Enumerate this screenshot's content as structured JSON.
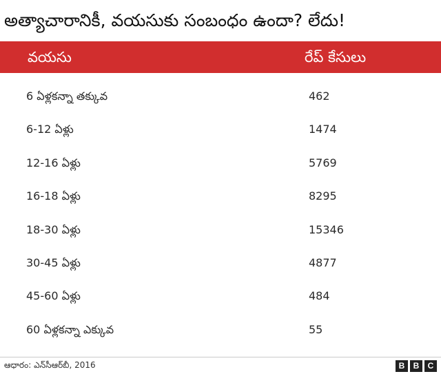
{
  "title": "అత్యాచారానికీ, వయసుకు సంబంధం ఉందా? లేదు!",
  "header_color": "#d12e2e",
  "chart_data": {
    "type": "table",
    "columns": [
      "వయసు",
      "రేప్ కేసులు"
    ],
    "rows": [
      {
        "age": "6 ఏళ్లకన్నా తక్కువ",
        "cases": 462
      },
      {
        "age": "6-12 ఏళ్లు",
        "cases": 1474
      },
      {
        "age": "12-16 ఏళ్లు",
        "cases": 5769
      },
      {
        "age": "16-18 ఏళ్లు",
        "cases": 8295
      },
      {
        "age": "18-30 ఏళ్లు",
        "cases": 15346
      },
      {
        "age": "30-45 ఏళ్లు",
        "cases": 4877
      },
      {
        "age": "45-60 ఏళ్లు",
        "cases": 484
      },
      {
        "age": "60 ఏళ్లకన్నా ఎక్కువ",
        "cases": 55
      }
    ]
  },
  "footer": {
    "source": "ఆధారం: ఎన్‌సీఆర్‌బీ, 2016",
    "logo_letters": [
      "B",
      "B",
      "C"
    ]
  }
}
